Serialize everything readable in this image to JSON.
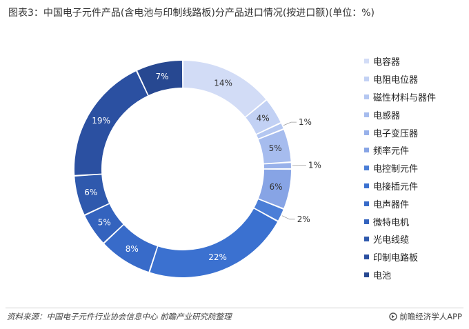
{
  "title": "图表3：中国电子元件产品(含电池与印制线路板)分产品进口情况(按进口额)(单位：%)",
  "chart_data": {
    "type": "pie",
    "variant": "donut",
    "categories": [
      "电容器",
      "电阻电位器",
      "磁性材料与器件",
      "电感器",
      "电子变压器",
      "频率元件",
      "电控制元件",
      "电接插元件",
      "电声器件",
      "微特电机",
      "光电线缆",
      "印制电路板",
      "电池"
    ],
    "values": [
      14,
      4,
      1,
      5,
      1,
      6,
      2,
      22,
      8,
      5,
      6,
      19,
      7
    ],
    "value_labels": [
      "14%",
      "4%",
      "1%",
      "5%",
      "1%",
      "6%",
      "2%",
      "22%",
      "8%",
      "5%",
      "6%",
      "19%",
      "7%"
    ],
    "colors": [
      "#d2dcf6",
      "#c2d1f4",
      "#b4c7f1",
      "#a6bcee",
      "#98b1ea",
      "#87a4e5",
      "#4b7ed7",
      "#3b71d0",
      "#386bc9",
      "#3463be",
      "#2f59ad",
      "#2b50a1",
      "#274891"
    ],
    "legend_position": "right"
  },
  "footer": {
    "source": "资料来源：中国电子元件行业协会信息中心 前瞻产业研究院整理",
    "brand": "前瞻经济学人APP"
  }
}
